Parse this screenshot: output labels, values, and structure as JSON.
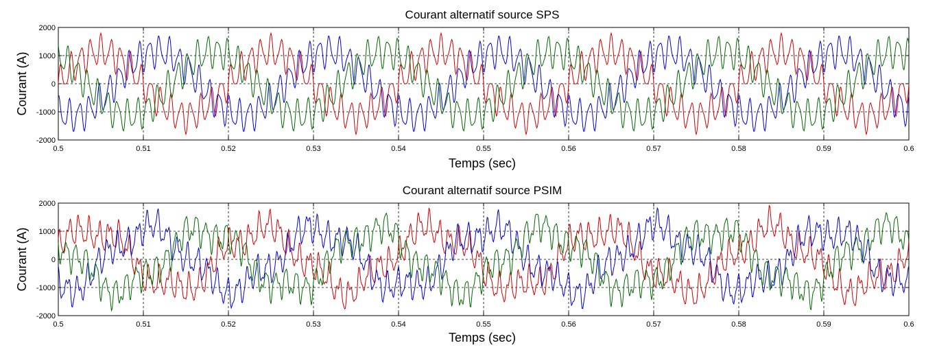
{
  "chart_data": [
    {
      "type": "line",
      "title": "Courant alternatif source SPS",
      "xlabel": "Temps (sec)",
      "ylabel": "Courant (A)",
      "xlim": [
        0.5,
        0.6
      ],
      "ylim": [
        -2000,
        2000
      ],
      "x_ticks": [
        0.5,
        0.51,
        0.52,
        0.53,
        0.54,
        0.55,
        0.56,
        0.57,
        0.58,
        0.59,
        0.6
      ],
      "y_ticks": [
        -2000,
        -1000,
        0,
        1000,
        2000
      ],
      "grid": true,
      "grid_style": "dotted",
      "fundamental_hz": 50,
      "series": [
        {
          "color": "#cc0000",
          "amplitude": 1150,
          "phase_deg": 0,
          "ripple": 480
        },
        {
          "color": "#0000cc",
          "amplitude": 1150,
          "phase_deg": -120,
          "ripple": 480
        },
        {
          "color": "#006600",
          "amplitude": 1150,
          "phase_deg": 120,
          "ripple": 480
        }
      ]
    },
    {
      "type": "line",
      "title": "Courant alternatif source PSIM",
      "xlabel": "Temps (sec)",
      "ylabel": "Courant (A)",
      "xlim": [
        0.5,
        0.6
      ],
      "ylim": [
        -2000,
        2000
      ],
      "x_ticks": [
        0.5,
        0.51,
        0.52,
        0.53,
        0.54,
        0.55,
        0.56,
        0.57,
        0.58,
        0.59,
        0.6
      ],
      "y_ticks": [
        -2000,
        -1000,
        0,
        1000,
        2000
      ],
      "grid": true,
      "grid_style": "dotted",
      "fundamental_hz": 50,
      "series": [
        {
          "color": "#cc0000",
          "amplitude": 1050,
          "phase_deg": 20,
          "ripple": 420
        },
        {
          "color": "#0000cc",
          "amplitude": 1050,
          "phase_deg": -100,
          "ripple": 420
        },
        {
          "color": "#006600",
          "amplitude": 1050,
          "phase_deg": 140,
          "ripple": 420
        }
      ]
    }
  ]
}
